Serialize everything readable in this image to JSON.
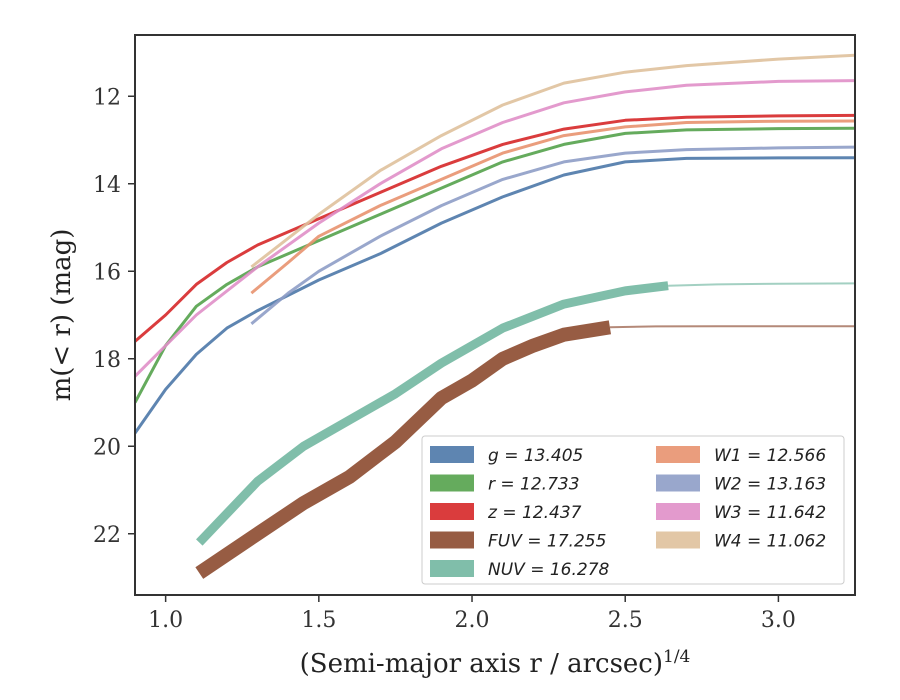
{
  "chart_data": {
    "type": "line",
    "title": "",
    "xlabel": "(Semi-major axis r / arcsec)",
    "xlabel_exponent": "1/4",
    "ylabel": "m(< r) (mag)",
    "xlim": [
      0.9,
      3.25
    ],
    "ylim": [
      23.4,
      10.6
    ],
    "y_inverted": true,
    "x_ticks": [
      "1.0",
      "1.5",
      "2.0",
      "2.5",
      "3.0"
    ],
    "y_ticks": [
      "12",
      "14",
      "16",
      "18",
      "20",
      "22"
    ],
    "grid": false,
    "legend_position": "lower-right",
    "legend_columns": 2,
    "series": [
      {
        "name": "g = 13.405",
        "band": "g",
        "color": "#4c78a8",
        "x": [
          0.9,
          1.0,
          1.1,
          1.2,
          1.3,
          1.5,
          1.7,
          1.9,
          2.1,
          2.3,
          2.5,
          2.7,
          3.0,
          3.25
        ],
        "y": [
          19.7,
          18.7,
          17.9,
          17.3,
          16.9,
          16.2,
          15.6,
          14.9,
          14.3,
          13.8,
          13.5,
          13.42,
          13.41,
          13.405
        ]
      },
      {
        "name": "r = 12.733",
        "band": "r",
        "color": "#54a24b",
        "x": [
          0.9,
          1.0,
          1.1,
          1.2,
          1.3,
          1.5,
          1.7,
          1.9,
          2.1,
          2.3,
          2.5,
          2.7,
          3.0,
          3.25
        ],
        "y": [
          19.0,
          17.7,
          16.8,
          16.3,
          15.9,
          15.3,
          14.7,
          14.1,
          13.5,
          13.1,
          12.85,
          12.77,
          12.74,
          12.733
        ]
      },
      {
        "name": "z = 12.437",
        "band": "z",
        "color": "#d62728",
        "x": [
          0.9,
          1.0,
          1.1,
          1.2,
          1.3,
          1.5,
          1.7,
          1.9,
          2.1,
          2.3,
          2.5,
          2.7,
          3.0,
          3.25
        ],
        "y": [
          17.6,
          17.0,
          16.3,
          15.8,
          15.4,
          14.8,
          14.2,
          13.6,
          13.1,
          12.75,
          12.55,
          12.48,
          12.45,
          12.437
        ]
      },
      {
        "name": "FUV = 17.255",
        "band": "FUV",
        "color": "#8c4a2f",
        "x": [
          1.11,
          1.3,
          1.45,
          1.6,
          1.75,
          1.9,
          2.0,
          2.1,
          2.2,
          2.3,
          2.45
        ],
        "y": [
          22.9,
          22.0,
          21.3,
          20.7,
          19.9,
          18.9,
          18.5,
          18.0,
          17.7,
          17.45,
          17.28
        ],
        "extension_x": [
          2.45,
          2.6,
          2.8,
          3.0,
          3.25
        ],
        "extension_y": [
          17.28,
          17.26,
          17.256,
          17.255,
          17.255
        ]
      },
      {
        "name": "NUV = 16.278",
        "band": "NUV",
        "color": "#72b7a1",
        "x": [
          1.11,
          1.3,
          1.45,
          1.6,
          1.75,
          1.9,
          2.1,
          2.3,
          2.5,
          2.64
        ],
        "y": [
          22.2,
          20.8,
          20.0,
          19.4,
          18.8,
          18.1,
          17.3,
          16.75,
          16.45,
          16.33
        ],
        "extension_x": [
          2.64,
          2.8,
          3.0,
          3.25
        ],
        "extension_y": [
          16.33,
          16.3,
          16.285,
          16.278
        ]
      },
      {
        "name": "W1 = 12.566",
        "band": "W1",
        "color": "#e8926f",
        "x": [
          1.28,
          1.4,
          1.5,
          1.7,
          1.9,
          2.1,
          2.3,
          2.5,
          2.7,
          3.0,
          3.25
        ],
        "y": [
          16.5,
          15.8,
          15.2,
          14.5,
          13.9,
          13.3,
          12.9,
          12.7,
          12.6,
          12.57,
          12.566
        ]
      },
      {
        "name": "W2 = 13.163",
        "band": "W2",
        "color": "#8e9dc6",
        "x": [
          1.28,
          1.4,
          1.5,
          1.7,
          1.9,
          2.1,
          2.3,
          2.5,
          2.7,
          3.0,
          3.25
        ],
        "y": [
          17.2,
          16.5,
          16.0,
          15.2,
          14.5,
          13.9,
          13.5,
          13.3,
          13.22,
          13.18,
          13.163
        ]
      },
      {
        "name": "W3 = 11.642",
        "band": "W3",
        "color": "#e08fc8",
        "x": [
          0.9,
          1.1,
          1.3,
          1.5,
          1.7,
          1.9,
          2.1,
          2.3,
          2.5,
          2.7,
          3.0,
          3.25
        ],
        "y": [
          18.4,
          17.0,
          15.9,
          14.9,
          14.0,
          13.2,
          12.6,
          12.15,
          11.9,
          11.75,
          11.66,
          11.642
        ]
      },
      {
        "name": "W4 = 11.062",
        "band": "W4",
        "color": "#dfc19c",
        "x": [
          1.28,
          1.5,
          1.7,
          1.9,
          2.1,
          2.3,
          2.5,
          2.7,
          3.0,
          3.25
        ],
        "y": [
          15.9,
          14.7,
          13.7,
          12.9,
          12.2,
          11.7,
          11.45,
          11.3,
          11.15,
          11.062
        ]
      }
    ]
  }
}
